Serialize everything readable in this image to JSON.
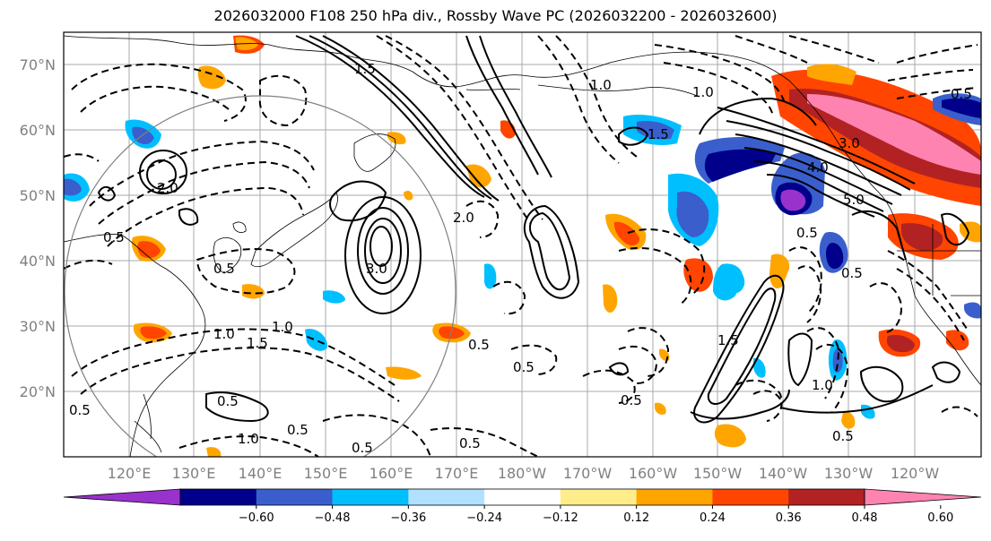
{
  "title": "2026032000 F108 250 hPa div., Rossby Wave PC (2026032200 - 2026032600)",
  "lat_labels": [
    "70°N",
    "60°N",
    "50°N",
    "40°N",
    "30°N",
    "20°N"
  ],
  "lon_labels": [
    "120°E",
    "130°E",
    "140°E",
    "150°E",
    "160°E",
    "170°E",
    "180°W",
    "170°W",
    "160°W",
    "150°W",
    "140°W",
    "130°W",
    "120°W"
  ],
  "colorbar": {
    "colors": [
      "#9932cc",
      "#00008b",
      "#3a5fcd",
      "#00bfff",
      "#b0e2ff",
      "#ffffff",
      "#ffec8b",
      "#ffa500",
      "#ff4500",
      "#b22222",
      "#ff83b0"
    ],
    "ticks": [
      "−0.60",
      "−0.48",
      "−0.36",
      "−0.24",
      "−0.12",
      "0.12",
      "0.24",
      "0.36",
      "0.48",
      "0.60"
    ]
  },
  "contour_labels": [
    "0.5",
    "1.0",
    "1.5",
    "2.0",
    "3.0",
    "4.0",
    "5.0"
  ],
  "colors": {
    "grid": "#a9a9a9",
    "circle": "#808080",
    "contour": "#000000"
  }
}
